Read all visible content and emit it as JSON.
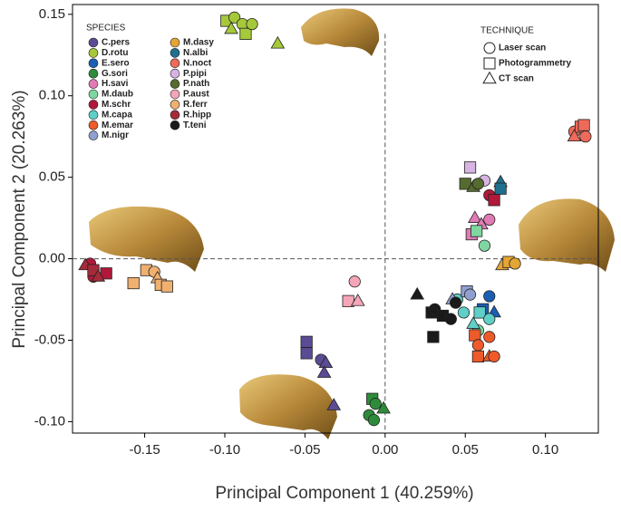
{
  "chart_data": {
    "type": "scatter",
    "x_label": "Principal Component 1 (40.259%)",
    "y_label": "Principal Component 2 (20.263%)",
    "xlim": [
      -0.195,
      0.133
    ],
    "ylim": [
      -0.107,
      0.156
    ],
    "xticks": [
      {
        "value": -0.15,
        "label": "-0.15"
      },
      {
        "value": -0.1,
        "label": "-0.10"
      },
      {
        "value": -0.05,
        "label": "-0.05"
      },
      {
        "value": 0,
        "label": "0.00"
      },
      {
        "value": 0.05,
        "label": "0.05"
      },
      {
        "value": 0.1,
        "label": "0.10"
      }
    ],
    "yticks": [
      {
        "value": -0.1,
        "label": "-0.10"
      },
      {
        "value": -0.05,
        "label": "-0.05"
      },
      {
        "value": 0,
        "label": "0.00"
      },
      {
        "value": 0.05,
        "label": "0.05"
      },
      {
        "value": 0.1,
        "label": "0.10"
      },
      {
        "value": 0.15,
        "label": "0.15"
      }
    ],
    "species_legend_title": "SPECIES",
    "technique_legend_title": "TECHNIQUE",
    "techniques": [
      {
        "name": "Laser scan",
        "shape": "circle"
      },
      {
        "name": "Photogrammetry",
        "shape": "square"
      },
      {
        "name": "CT scan",
        "shape": "triangle"
      }
    ],
    "series": [
      {
        "name": "C.pers",
        "color": "#5b4b94",
        "x": [
          -0.049,
          -0.049,
          -0.04,
          -0.037,
          -0.038,
          -0.032
        ],
        "y": [
          -0.051,
          -0.058,
          -0.062,
          -0.064,
          -0.07,
          -0.09
        ],
        "shapes": [
          "square",
          "square",
          "circle",
          "triangle",
          "triangle",
          "triangle"
        ]
      },
      {
        "name": "D.rotu",
        "color": "#a6c93a",
        "x": [
          -0.099,
          -0.094,
          -0.089,
          -0.096,
          -0.087,
          -0.083,
          -0.067
        ],
        "y": [
          0.146,
          0.148,
          0.144,
          0.141,
          0.138,
          0.144,
          0.132
        ],
        "shapes": [
          "square",
          "circle",
          "circle",
          "triangle",
          "square",
          "circle",
          "triangle"
        ]
      },
      {
        "name": "E.sero",
        "color": "#1a5fb4",
        "x": [
          0.065,
          0.068,
          0.061
        ],
        "y": [
          -0.023,
          -0.033,
          -0.031
        ],
        "shapes": [
          "circle",
          "triangle",
          "square"
        ]
      },
      {
        "name": "G.sori",
        "color": "#2e8b3a",
        "x": [
          -0.008,
          -0.006,
          -0.001,
          -0.01,
          -0.007
        ],
        "y": [
          -0.086,
          -0.089,
          -0.092,
          -0.096,
          -0.099
        ],
        "shapes": [
          "square",
          "circle",
          "triangle",
          "circle",
          "circle"
        ]
      },
      {
        "name": "H.savi",
        "color": "#e07bb5",
        "x": [
          0.056,
          0.06,
          0.054,
          0.065
        ],
        "y": [
          0.025,
          0.021,
          0.015,
          0.024
        ],
        "shapes": [
          "triangle",
          "triangle",
          "square",
          "circle"
        ]
      },
      {
        "name": "M.daub",
        "color": "#7fd6a0",
        "x": [
          0.062,
          0.057,
          0.058
        ],
        "y": [
          0.008,
          0.017,
          -0.044
        ],
        "shapes": [
          "circle",
          "square",
          "circle"
        ]
      },
      {
        "name": "M.schr",
        "color": "#b0193a",
        "x": [
          -0.184,
          -0.174,
          -0.182,
          0.065,
          0.068
        ],
        "y": [
          -0.003,
          -0.009,
          -0.011,
          0.039,
          0.036
        ],
        "shapes": [
          "circle",
          "square",
          "circle",
          "circle",
          "square"
        ]
      },
      {
        "name": "M.capa",
        "color": "#5fcfc7",
        "x": [
          0.045,
          0.049,
          0.055,
          0.059,
          0.065
        ],
        "y": [
          -0.025,
          -0.033,
          -0.04,
          -0.033,
          -0.037
        ],
        "shapes": [
          "circle",
          "circle",
          "triangle",
          "square",
          "circle"
        ]
      },
      {
        "name": "M.emar",
        "color": "#ee5a2a",
        "x": [
          0.056,
          0.058,
          0.065,
          0.058,
          0.065,
          0.068
        ],
        "y": [
          -0.047,
          -0.053,
          -0.048,
          -0.06,
          -0.06,
          -0.06
        ],
        "shapes": [
          "square",
          "circle",
          "circle",
          "square",
          "triangle",
          "circle"
        ]
      },
      {
        "name": "M.nigr",
        "color": "#8f9fcf",
        "x": [
          0.051,
          0.053,
          0.042
        ],
        "y": [
          -0.02,
          -0.022,
          -0.025
        ],
        "shapes": [
          "square",
          "circle",
          "triangle"
        ]
      },
      {
        "name": "M.dasy",
        "color": "#e4a534",
        "x": [
          0.073,
          0.077,
          0.081
        ],
        "y": [
          -0.004,
          -0.002,
          -0.003
        ],
        "shapes": [
          "triangle",
          "square",
          "circle"
        ]
      },
      {
        "name": "N.albi",
        "color": "#1f6f8f",
        "x": [
          0.072,
          0.072
        ],
        "y": [
          0.047,
          0.043
        ],
        "shapes": [
          "triangle",
          "square"
        ]
      },
      {
        "name": "N.noct",
        "color": "#ee6a5a",
        "x": [
          0.118,
          0.122,
          0.124,
          0.118,
          0.125
        ],
        "y": [
          0.078,
          0.081,
          0.082,
          0.075,
          0.075
        ],
        "shapes": [
          "circle",
          "square",
          "square",
          "triangle",
          "circle"
        ]
      },
      {
        "name": "P.pipi",
        "color": "#d8b4e2",
        "x": [
          0.053,
          0.062
        ],
        "y": [
          0.056,
          0.048
        ],
        "shapes": [
          "square",
          "circle"
        ]
      },
      {
        "name": "P.nath",
        "color": "#556b2f",
        "x": [
          0.05,
          0.055,
          0.058
        ],
        "y": [
          0.046,
          0.044,
          0.046
        ],
        "shapes": [
          "square",
          "triangle",
          "circle"
        ]
      },
      {
        "name": "P.aust",
        "color": "#f4a6b8",
        "x": [
          -0.019,
          -0.023,
          -0.017
        ],
        "y": [
          -0.014,
          -0.026,
          -0.026
        ],
        "shapes": [
          "circle",
          "square",
          "triangle"
        ]
      },
      {
        "name": "R.ferr",
        "color": "#f0b070",
        "x": [
          -0.157,
          -0.149,
          -0.144,
          -0.142,
          -0.14,
          -0.136
        ],
        "y": [
          -0.015,
          -0.007,
          -0.008,
          -0.012,
          -0.016,
          -0.017
        ],
        "shapes": [
          "square",
          "square",
          "circle",
          "triangle",
          "square",
          "square"
        ]
      },
      {
        "name": "R.hipp",
        "color": "#a52a3a",
        "x": [
          -0.187,
          -0.182,
          -0.179
        ],
        "y": [
          -0.004,
          -0.007,
          -0.011
        ],
        "shapes": [
          "triangle",
          "square",
          "triangle"
        ]
      },
      {
        "name": "T.teni",
        "color": "#1a1a1a",
        "x": [
          0.02,
          0.029,
          0.031,
          0.036,
          0.03,
          0.044,
          0.041
        ],
        "y": [
          -0.022,
          -0.033,
          -0.031,
          -0.035,
          -0.048,
          -0.027,
          -0.037
        ],
        "shapes": [
          "triangle",
          "square",
          "circle",
          "square",
          "square",
          "circle",
          "circle"
        ]
      }
    ]
  }
}
